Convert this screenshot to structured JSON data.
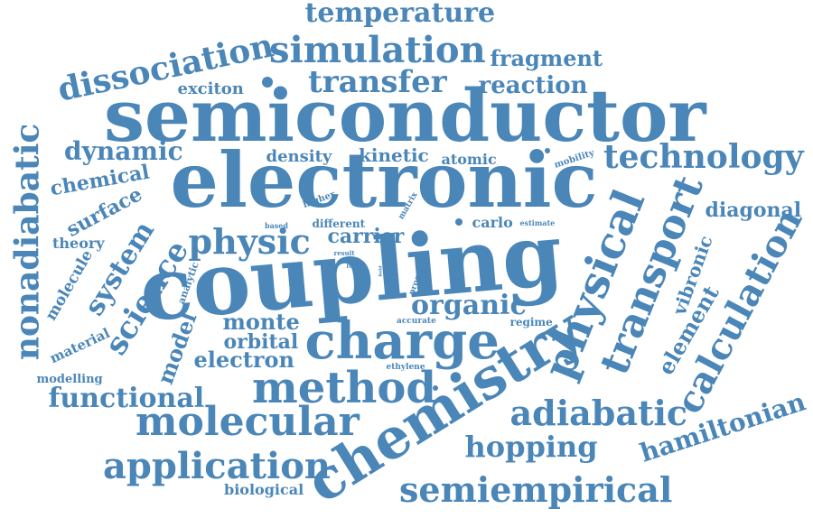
{
  "word_cloud": {
    "color": "#4a86b8",
    "words": [
      {
        "id": "semiconductor",
        "text": "semiconductor"
      },
      {
        "id": "electronic",
        "text": "electronic"
      },
      {
        "id": "coupling",
        "text": "coupling"
      },
      {
        "id": "chemistry",
        "text": "chemistry"
      },
      {
        "id": "charge",
        "text": "charge"
      },
      {
        "id": "method",
        "text": "method"
      },
      {
        "id": "molecular",
        "text": "molecular"
      },
      {
        "id": "physical",
        "text": "physical"
      },
      {
        "id": "application",
        "text": "application"
      },
      {
        "id": "semiempirical",
        "text": "semiempirical"
      },
      {
        "id": "transport",
        "text": "transport"
      },
      {
        "id": "calculation",
        "text": "calculation"
      },
      {
        "id": "simulation",
        "text": "simulation"
      },
      {
        "id": "dissociation",
        "text": "dissociation"
      },
      {
        "id": "transfer",
        "text": "transfer"
      },
      {
        "id": "technology",
        "text": "technology"
      },
      {
        "id": "nonadiabatic",
        "text": "nonadiabatic"
      },
      {
        "id": "physic",
        "text": "physic"
      },
      {
        "id": "adiabatic",
        "text": "adiabatic"
      },
      {
        "id": "hopping",
        "text": "hopping"
      },
      {
        "id": "hamiltonian",
        "text": "hamiltonian"
      },
      {
        "id": "temperature",
        "text": "temperature"
      },
      {
        "id": "science",
        "text": "science"
      },
      {
        "id": "organic",
        "text": "organic"
      },
      {
        "id": "functional",
        "text": "functional"
      },
      {
        "id": "system",
        "text": "system"
      },
      {
        "id": "dynamic",
        "text": "dynamic"
      },
      {
        "id": "reaction",
        "text": "reaction"
      },
      {
        "id": "fragment",
        "text": "fragment"
      },
      {
        "id": "diagonal",
        "text": "diagonal"
      },
      {
        "id": "chemical",
        "text": "chemical"
      },
      {
        "id": "electron",
        "text": "electron"
      },
      {
        "id": "monte",
        "text": "monte"
      },
      {
        "id": "orbital",
        "text": "orbital"
      },
      {
        "id": "model",
        "text": "model"
      },
      {
        "id": "element",
        "text": "element"
      },
      {
        "id": "vibronic",
        "text": "vibronic"
      },
      {
        "id": "surface",
        "text": "surface"
      },
      {
        "id": "carrier",
        "text": "carrier"
      },
      {
        "id": "kinetic",
        "text": "kinetic"
      },
      {
        "id": "density",
        "text": "density"
      },
      {
        "id": "exciton",
        "text": "exciton"
      },
      {
        "id": "biological",
        "text": "biological"
      },
      {
        "id": "molecule",
        "text": "molecule"
      },
      {
        "id": "atomic",
        "text": "atomic"
      },
      {
        "id": "carlo",
        "text": "carlo"
      },
      {
        "id": "theory",
        "text": "theory"
      },
      {
        "id": "material",
        "text": "material"
      },
      {
        "id": "modelling",
        "text": "modelling"
      },
      {
        "id": "different",
        "text": "different"
      },
      {
        "id": "regime",
        "text": "regime"
      },
      {
        "id": "analytic",
        "text": "analytic"
      },
      {
        "id": "higher",
        "text": "higher"
      },
      {
        "id": "mobility",
        "text": "mobility"
      },
      {
        "id": "program",
        "text": "program"
      },
      {
        "id": "matrix",
        "text": "matrix"
      },
      {
        "id": "ethylene",
        "text": "ethylene"
      },
      {
        "id": "accurate",
        "text": "accurate"
      },
      {
        "id": "based",
        "text": "based"
      },
      {
        "id": "estimate",
        "text": "estimate"
      },
      {
        "id": "result",
        "text": "result"
      },
      {
        "id": "force",
        "text": "force"
      },
      {
        "id": "site",
        "text": "site"
      },
      {
        "id": "basis",
        "text": "basis"
      },
      {
        "id": "field",
        "text": "field"
      }
    ]
  }
}
